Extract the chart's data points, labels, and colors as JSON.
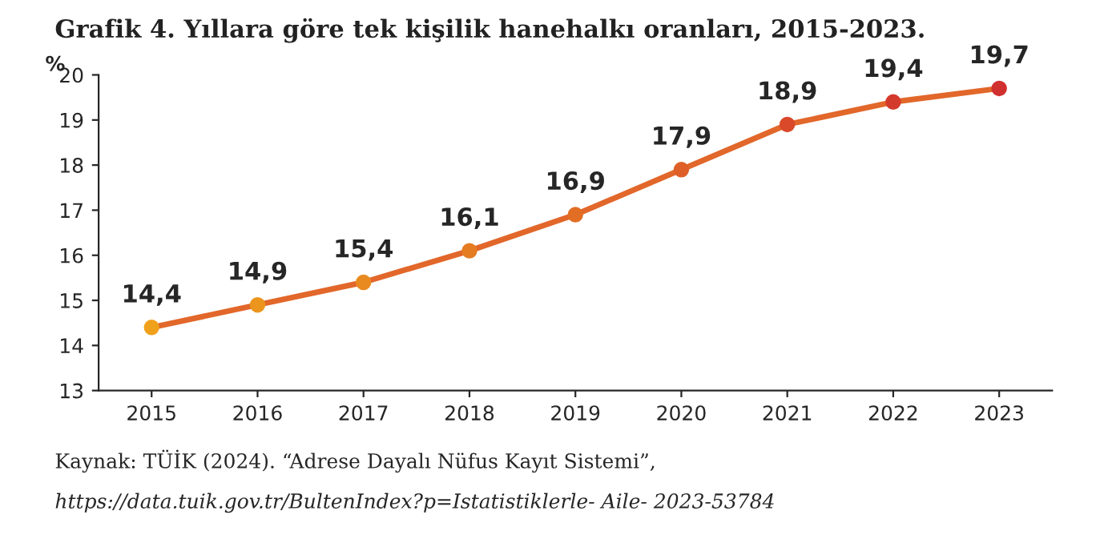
{
  "chart_data": {
    "type": "line",
    "title": "Grafik 4. Yıllara göre tek kişilik hanehalkı oranları, 2015-2023.",
    "ylabel": "%",
    "categories": [
      "2015",
      "2016",
      "2017",
      "2018",
      "2019",
      "2020",
      "2021",
      "2022",
      "2023"
    ],
    "series": [
      {
        "color": "#e2672a",
        "values": [
          14.4,
          14.9,
          15.4,
          16.1,
          16.9,
          17.9,
          18.9,
          19.4,
          19.7
        ],
        "value_labels": [
          "14,4",
          "14,9",
          "15,4",
          "16,1",
          "16,9",
          "17,9",
          "18,9",
          "19,4",
          "19,7"
        ],
        "colors": [
          "#f0a11c",
          "#eb951e",
          "#e98a20",
          "#e57c22",
          "#e26e25",
          "#de5f27",
          "#d9492a",
          "#d43a2c",
          "#d0302e"
        ]
      }
    ],
    "ylim": [
      13,
      20
    ],
    "yticks": [
      13,
      14,
      15,
      16,
      17,
      18,
      19,
      20
    ],
    "marker": "circle",
    "line_style": "solid",
    "grid": false,
    "legend": false,
    "annotations": [
      "Kaynak: TÜİK (2024). “Adrese Dayalı Nüfus Kayıt Sistemi”,",
      "https://data.tuik.gov.tr/BultenIndex?p=Istatistiklerle- Aile- 2023-53784"
    ]
  }
}
